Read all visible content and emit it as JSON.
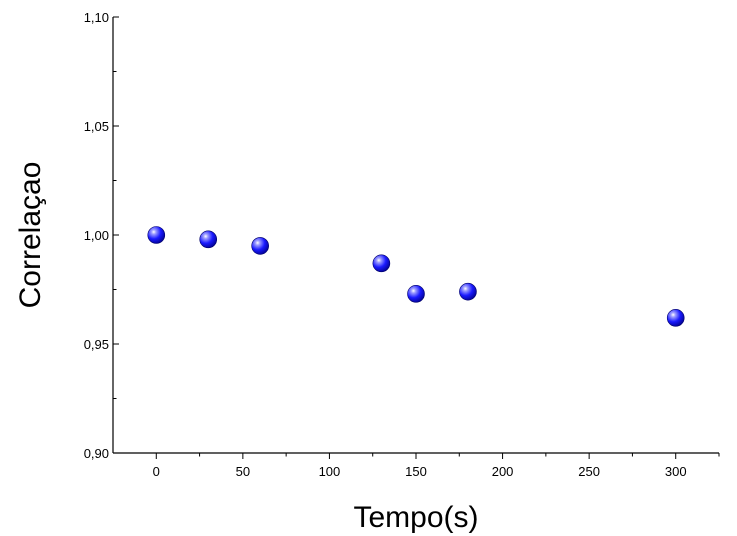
{
  "chart_data": {
    "type": "scatter",
    "xlabel": "Tempo(s)",
    "ylabel": "Correlaçao",
    "xlim": [
      -25,
      325
    ],
    "ylim": [
      0.9,
      1.1
    ],
    "x_ticks": [
      0,
      50,
      100,
      150,
      200,
      250,
      300
    ],
    "x_tick_labels": [
      "0",
      "50",
      "100",
      "150",
      "200",
      "250",
      "300"
    ],
    "y_ticks": [
      0.9,
      0.95,
      1.0,
      1.05,
      1.1
    ],
    "y_tick_labels": [
      "0,90",
      "0,95",
      "1,00",
      "1,05",
      "1,10"
    ],
    "grid": false,
    "legend": "none",
    "marker_color": "#1a1aff",
    "series": [
      {
        "x": [
          0,
          30,
          60,
          130,
          150,
          180,
          300
        ],
        "y": [
          1.0,
          0.998,
          0.995,
          0.987,
          0.973,
          0.974,
          0.962
        ]
      }
    ]
  }
}
